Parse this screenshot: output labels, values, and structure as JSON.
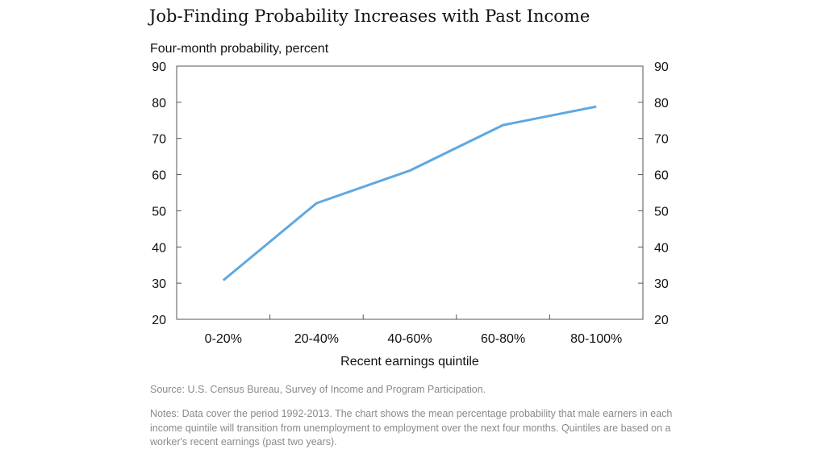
{
  "title": "Job-Finding Probability Increases with Past Income",
  "source": "Source: U.S. Census Bureau, Survey of Income and Program Participation.",
  "notes": "Notes: Data cover the period 1992-2013. The chart shows the mean percentage probability that male earners in each income quintile will transition from unemployment to employment over the next four months. Quintiles are based on a worker's recent earnings (past two years).",
  "chart_data": {
    "type": "line",
    "categories": [
      "0-20%",
      "20-40%",
      "40-60%",
      "60-80%",
      "80-100%"
    ],
    "series": [
      {
        "values": [
          30.8,
          52.1,
          61.1,
          73.7,
          78.8
        ],
        "color": "#5fa8e0"
      }
    ],
    "ylabel": "Four-month probability, percent",
    "xlabel": "Recent earnings quintile",
    "ylim": [
      20,
      90
    ],
    "yticks": [
      20,
      30,
      40,
      50,
      60,
      70,
      80,
      90
    ],
    "secondary_y_axis": true,
    "grid": false
  }
}
